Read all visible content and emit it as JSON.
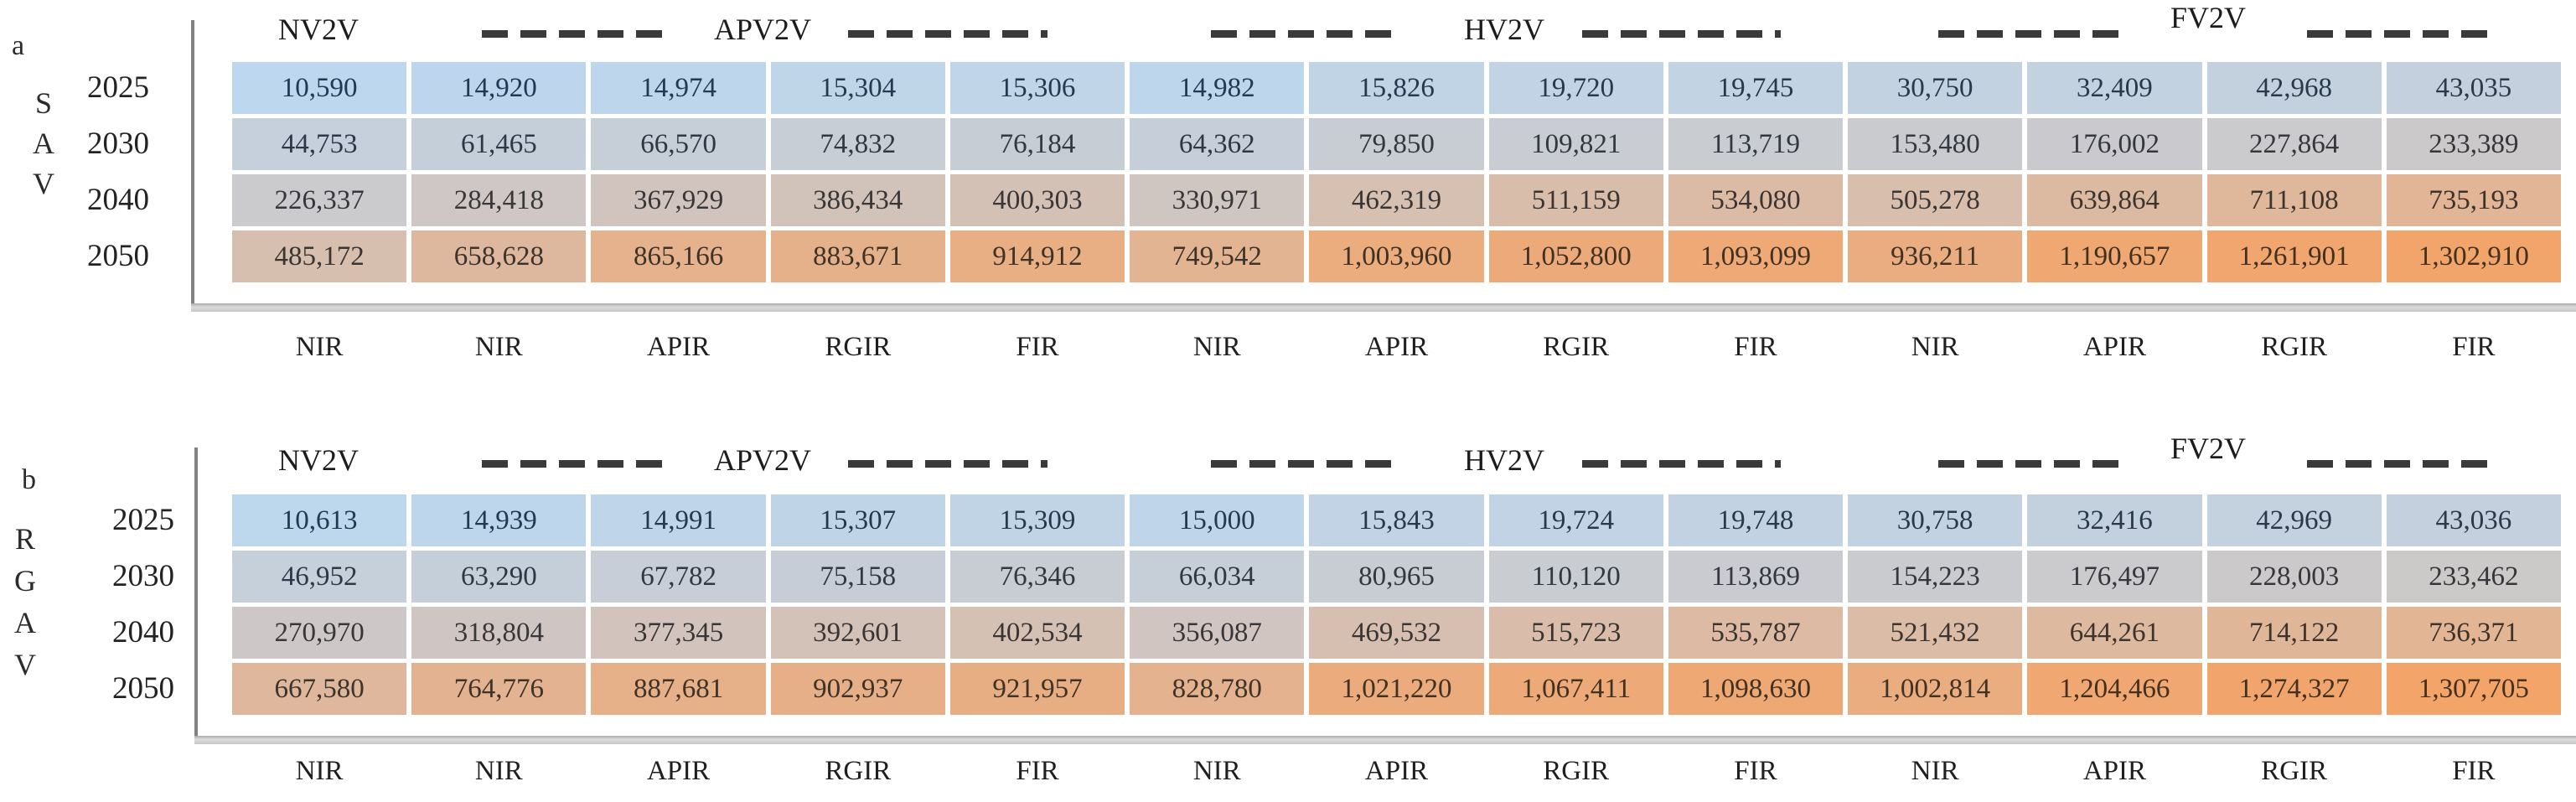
{
  "figure_colors": {
    "scale_low": "#BDD7EE",
    "scale_mid": "#CCC9CA",
    "scale_high": "#F3A469",
    "text_low": "#203A54",
    "text_mid": "#37373B",
    "text_high": "#44301C",
    "axis_gray": "#828282",
    "dash_dark": "#3a3a3a"
  },
  "chart_data": [
    {
      "type": "heatmap",
      "panel_letter": "a",
      "side_label": "SAV",
      "rows": [
        "2025",
        "2030",
        "2040",
        "2050"
      ],
      "column_groups": [
        "NV2V",
        "APV2V",
        "HV2V",
        "FV2V"
      ],
      "columns": [
        "NIR",
        "NIR",
        "APIR",
        "RGIR",
        "FIR",
        "NIR",
        "APIR",
        "RGIR",
        "FIR",
        "NIR",
        "APIR",
        "RGIR",
        "FIR"
      ],
      "values": [
        [
          10590,
          14920,
          14974,
          15304,
          15306,
          14982,
          15826,
          19720,
          19745,
          30750,
          32409,
          42968,
          43035
        ],
        [
          44753,
          61465,
          66570,
          74832,
          76184,
          64362,
          79850,
          109821,
          113719,
          153480,
          176002,
          227864,
          233389
        ],
        [
          226337,
          284418,
          367929,
          386434,
          400303,
          330971,
          462319,
          511159,
          534080,
          505278,
          639864,
          711108,
          735193
        ],
        [
          485172,
          658628,
          865166,
          883671,
          914912,
          749542,
          1003960,
          1052800,
          1093099,
          936211,
          1190657,
          1261901,
          1302910
        ]
      ],
      "color_scale": {
        "low": "#BDD7EE",
        "mid": "#CCC9CA",
        "high": "#F3A469",
        "mapping": "rank-percentile over both panels"
      },
      "legend_position": "top",
      "grid": false
    },
    {
      "type": "heatmap",
      "panel_letter": "b",
      "side_label": "RGAV",
      "rows": [
        "2025",
        "2030",
        "2040",
        "2050"
      ],
      "column_groups": [
        "NV2V",
        "APV2V",
        "HV2V",
        "FV2V"
      ],
      "columns": [
        "NIR",
        "NIR",
        "APIR",
        "RGIR",
        "FIR",
        "NIR",
        "APIR",
        "RGIR",
        "FIR",
        "NIR",
        "APIR",
        "RGIR",
        "FIR"
      ],
      "values": [
        [
          10613,
          14939,
          14991,
          15307,
          15309,
          15000,
          15843,
          19724,
          19748,
          30758,
          32416,
          42969,
          43036
        ],
        [
          46952,
          63290,
          67782,
          75158,
          76346,
          66034,
          80965,
          110120,
          113869,
          154223,
          176497,
          228003,
          233462
        ],
        [
          270970,
          318804,
          377345,
          392601,
          402534,
          356087,
          469532,
          515723,
          535787,
          521432,
          644261,
          714122,
          736371
        ],
        [
          667580,
          764776,
          887681,
          902937,
          921957,
          828780,
          1021220,
          1067411,
          1098630,
          1002814,
          1204466,
          1274327,
          1307705
        ]
      ],
      "color_scale": {
        "low": "#BDD7EE",
        "mid": "#CCC9CA",
        "high": "#F3A469",
        "mapping": "rank-percentile over both panels"
      },
      "legend_position": "top",
      "grid": false
    }
  ]
}
